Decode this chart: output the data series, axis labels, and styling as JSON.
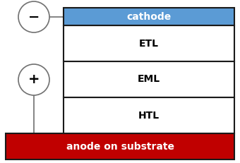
{
  "bg_color": "#ffffff",
  "cathode_color": "#5b9bd5",
  "cathode_text": "cathode",
  "cathode_text_color": "#ffffff",
  "anode_color": "#c00000",
  "anode_text": "anode on substrate",
  "anode_text_color": "#ffffff",
  "etl_text": "ETL",
  "eml_text": "EML",
  "htl_text": "HTL",
  "layer_text_color": "#000000",
  "border_color": "#1a1a1a",
  "wire_color": "#707070",
  "circle_facecolor": "#ffffff",
  "circle_edgecolor": "#707070",
  "minus_symbol": "−",
  "plus_symbol": "+",
  "symbol_color": "#000000",
  "fig_width": 3.4,
  "fig_height": 2.31,
  "dpi": 100,
  "font_size_layer": 10,
  "font_size_electrode": 10
}
